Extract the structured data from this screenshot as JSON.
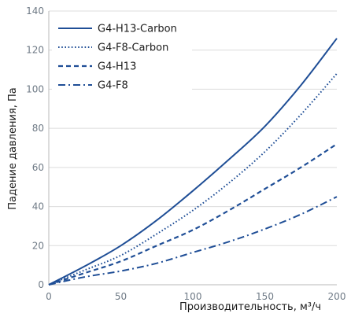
{
  "chart_data": {
    "type": "line",
    "xlabel": "Производительность, м³/ч",
    "ylabel": "Падение давления, Па",
    "xlim": [
      0,
      200
    ],
    "ylim": [
      0,
      140
    ],
    "x_ticks": [
      "0",
      "50",
      "100",
      "150",
      "200"
    ],
    "y_ticks": [
      "0",
      "20",
      "40",
      "60",
      "80",
      "100",
      "120",
      "140"
    ],
    "grid": "horizontal",
    "legend": "top-left",
    "line_color": "#1f4e96",
    "series": [
      {
        "name": "G4-H13-Carbon",
        "style": "solid",
        "x": [
          0,
          25,
          50,
          75,
          100,
          125,
          150,
          175,
          200
        ],
        "y": [
          0,
          9.5,
          20,
          33,
          48,
          64,
          81,
          102,
          126
        ]
      },
      {
        "name": "G4-F8-Carbon",
        "style": "dotted",
        "x": [
          0,
          25,
          50,
          75,
          100,
          125,
          150,
          175,
          200
        ],
        "y": [
          0,
          7.5,
          15,
          26,
          38,
          52,
          68,
          87,
          108
        ]
      },
      {
        "name": "G4-H13",
        "style": "dashed",
        "x": [
          0,
          25,
          50,
          75,
          100,
          125,
          150,
          175,
          200
        ],
        "y": [
          0,
          6,
          12,
          20,
          28,
          38,
          49,
          60,
          72
        ]
      },
      {
        "name": "G4-F8",
        "style": "dashdot",
        "x": [
          0,
          25,
          50,
          75,
          100,
          125,
          150,
          175,
          200
        ],
        "y": [
          0,
          4,
          7,
          11,
          16.5,
          22,
          28.5,
          36,
          45
        ]
      }
    ]
  }
}
